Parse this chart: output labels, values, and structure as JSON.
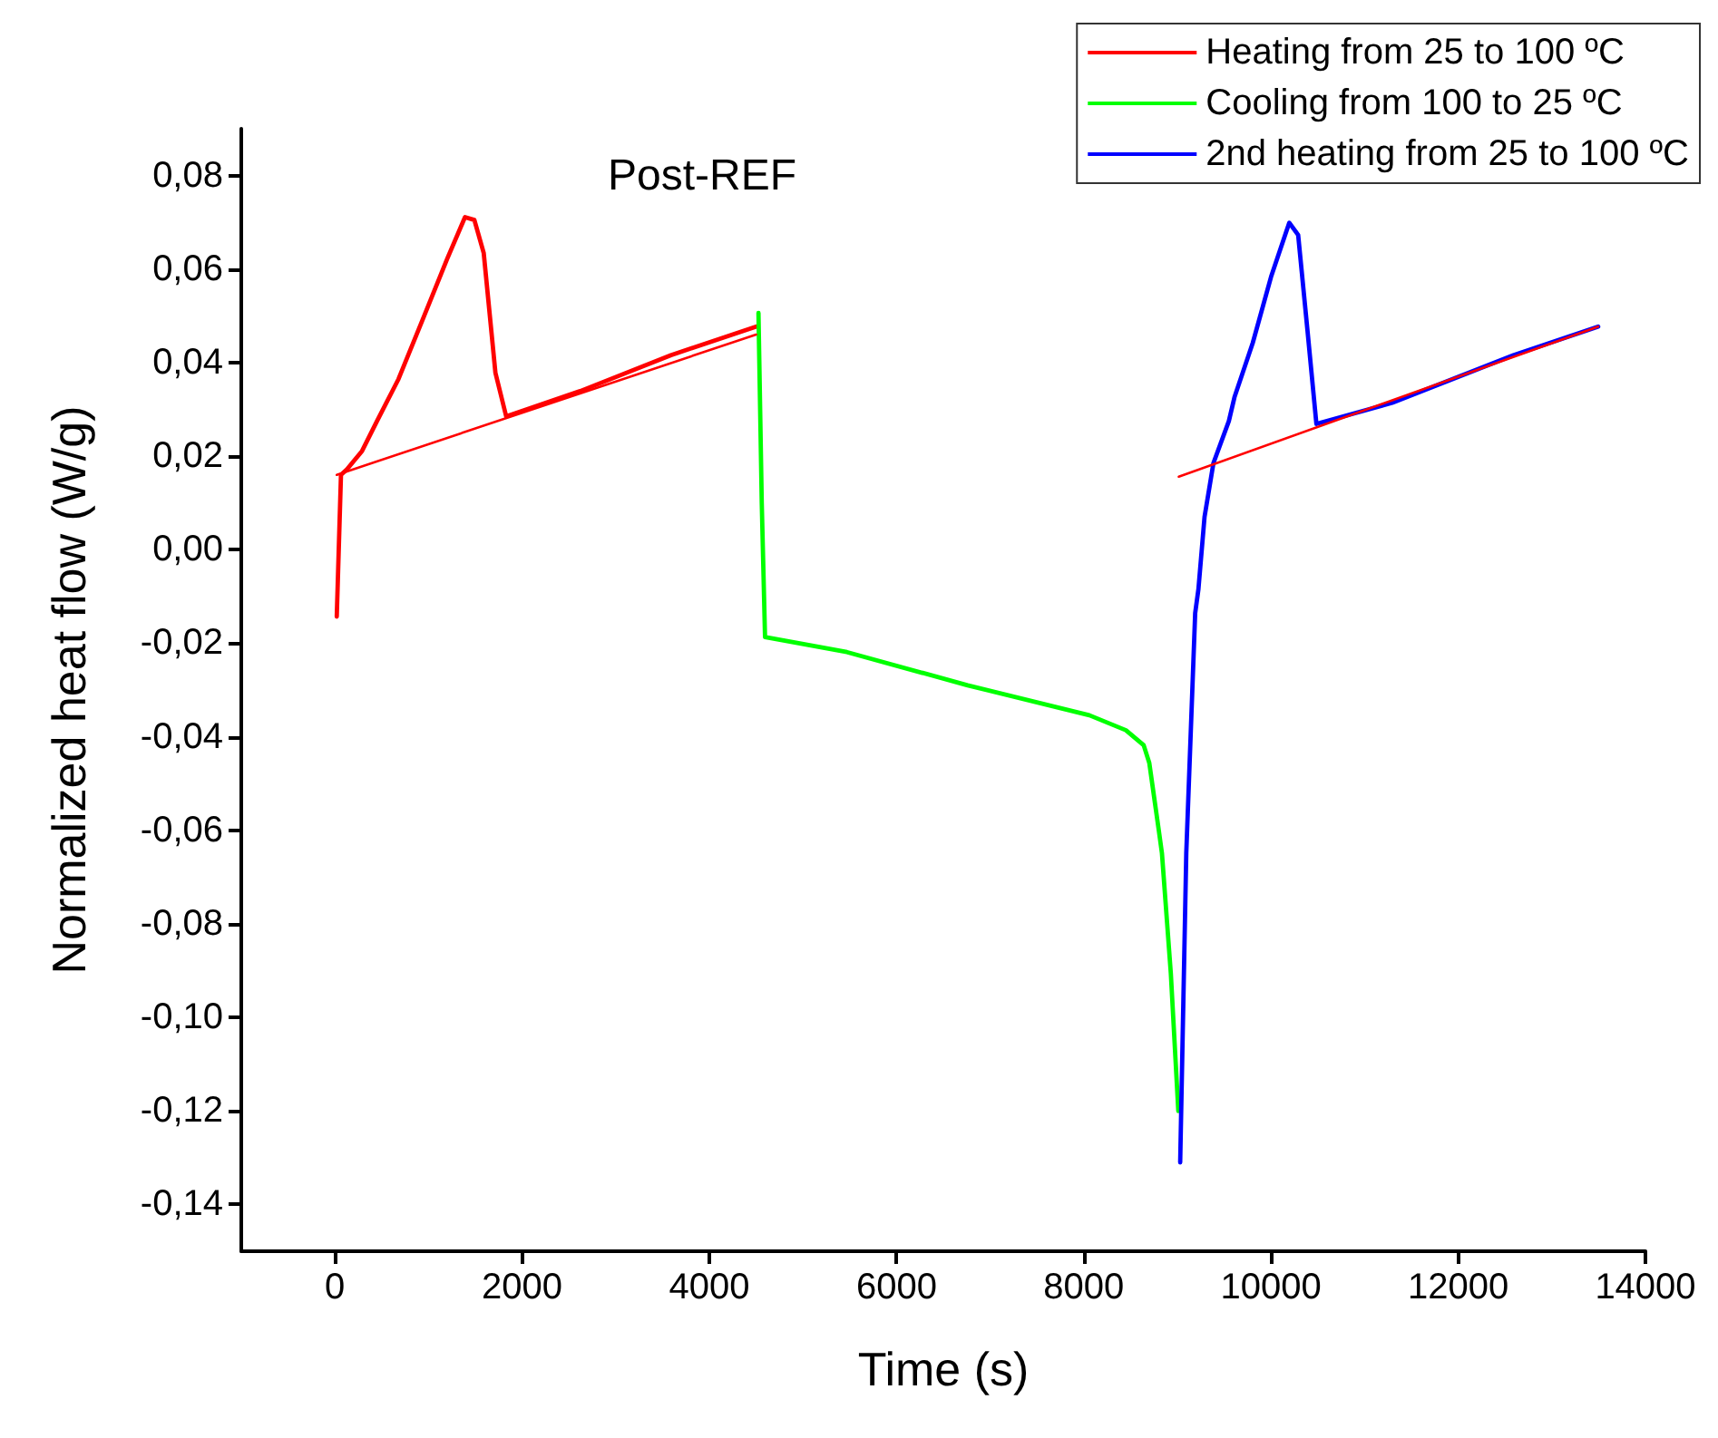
{
  "chart_data": {
    "type": "line",
    "title": "Post-REF",
    "xlabel": "Time (s)",
    "ylabel": "Normalized heat flow (W/g)",
    "xlim": [
      -1000,
      14000
    ],
    "xticks": [
      0,
      2000,
      4000,
      6000,
      8000,
      10000,
      12000,
      14000
    ],
    "ylim": [
      -0.15,
      0.09
    ],
    "yticks": [
      {
        "value": -0.14,
        "label": "-0,14"
      },
      {
        "value": -0.12,
        "label": "-0,12"
      },
      {
        "value": -0.1,
        "label": "-0,10"
      },
      {
        "value": -0.08,
        "label": "-0,08"
      },
      {
        "value": -0.06,
        "label": "-0,06"
      },
      {
        "value": -0.04,
        "label": "-0,04"
      },
      {
        "value": -0.02,
        "label": "-0,02"
      },
      {
        "value": 0,
        "label": "0,00"
      },
      {
        "value": 0.02,
        "label": "0,02"
      },
      {
        "value": 0.04,
        "label": "0,04"
      },
      {
        "value": 0.06,
        "label": "0,06"
      },
      {
        "value": 0.08,
        "label": "0,08"
      }
    ],
    "grid": false,
    "legend": "top right",
    "marker": "none",
    "line_style": "solid",
    "series": [
      {
        "name": "Heating from 25 to 100 ºC",
        "color": "#ff0000",
        "x": [
          20,
          65,
          130,
          290,
          450,
          680,
          940,
          1200,
          1390,
          1490,
          1590,
          1715,
          1830,
          2620,
          3590,
          4500
        ],
        "values": [
          -0.0143,
          0.016,
          0.0172,
          0.0211,
          0.0275,
          0.0365,
          0.0493,
          0.0622,
          0.0711,
          0.0705,
          0.0634,
          0.0378,
          0.0285,
          0.0339,
          0.0416,
          0.0477
        ]
      },
      {
        "name": "Cooling from 100 to 25 ºC",
        "color": "#00ff00",
        "x": [
          4525,
          4560,
          4595,
          5470,
          6760,
          8060,
          8450,
          8640,
          8700,
          8800,
          8835,
          8930,
          9010
        ],
        "values": [
          0.0506,
          0.01,
          -0.0187,
          -0.0219,
          -0.029,
          -0.0354,
          -0.0386,
          -0.0418,
          -0.0456,
          -0.0598,
          -0.0649,
          -0.0906,
          -0.12
        ]
      },
      {
        "name": "2nd heating from 25 to 100 ºC",
        "color": "#0000ff",
        "x": [
          9030,
          9095,
          9190,
          9225,
          9290,
          9385,
          9550,
          9610,
          9805,
          10000,
          10195,
          10290,
          10390,
          10485,
          11295,
          12590,
          13495
        ],
        "values": [
          -0.131,
          -0.0649,
          -0.0136,
          -0.0084,
          0.007,
          0.0185,
          0.0275,
          0.0326,
          0.0442,
          0.0583,
          0.0699,
          0.0673,
          0.0468,
          0.0269,
          0.0314,
          0.0416,
          0.0477
        ]
      },
      {
        "color": "#ff0000",
        "x": [
          20,
          4500
        ],
        "values": [
          0.016,
          0.046
        ]
      },
      {
        "color": "#ff0000",
        "x": [
          9015,
          13495
        ],
        "values": [
          0.0156,
          0.0477
        ]
      }
    ]
  }
}
